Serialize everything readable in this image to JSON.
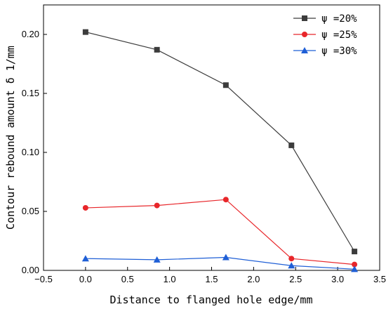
{
  "chart_data": {
    "type": "line",
    "title": "",
    "xlabel": "Distance to flanged hole edge/mm",
    "ylabel": "Contour rebound amount δ 1/mm",
    "xlim": [
      -0.5,
      3.5
    ],
    "ylim": [
      0.0,
      0.225
    ],
    "x_ticks": [
      -0.5,
      0.0,
      0.5,
      1.0,
      1.5,
      2.0,
      2.5,
      3.0,
      3.5
    ],
    "x_tick_labels": [
      "−0.5",
      "0.0",
      "0.5",
      "1.0",
      "1.5",
      "2.0",
      "2.5",
      "3.0",
      "3.5"
    ],
    "y_ticks": [
      0.0,
      0.05,
      0.1,
      0.15,
      0.2
    ],
    "y_tick_labels": [
      "0.00",
      "0.05",
      "0.10",
      "0.15",
      "0.20"
    ],
    "x": [
      0.0,
      0.85,
      1.67,
      2.45,
      3.2
    ],
    "series": [
      {
        "name": "ψ =20%",
        "color": "#3c3c3c",
        "marker": "square",
        "values": [
          0.202,
          0.187,
          0.157,
          0.106,
          0.016
        ]
      },
      {
        "name": "ψ =25%",
        "color": "#e8262a",
        "marker": "circle",
        "values": [
          0.053,
          0.055,
          0.06,
          0.01,
          0.005
        ]
      },
      {
        "name": "ψ =30%",
        "color": "#1f5fd6",
        "marker": "triangle",
        "values": [
          0.01,
          0.009,
          0.011,
          0.004,
          0.001
        ]
      }
    ],
    "legend_position": "top-right",
    "grid": false
  }
}
